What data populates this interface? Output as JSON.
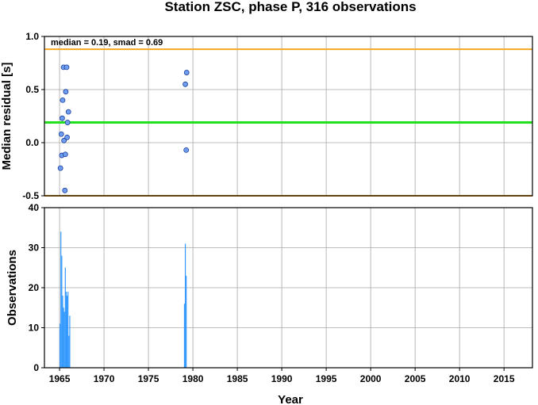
{
  "chart_data": {
    "title": "Station ZSC, phase P, 316 observations",
    "annotation": "median = 0.19, smad = 0.69",
    "xlabel": "Year",
    "xlim": [
      1963.3,
      2018.2
    ],
    "x_ticks": [
      1965,
      1970,
      1975,
      1980,
      1985,
      1990,
      1995,
      2000,
      2005,
      2010,
      2015
    ],
    "colors": {
      "points": "#6f9df0",
      "point_edge": "#1a3f9c",
      "median_line": "#22e01c",
      "bound_lines": "#f5a623",
      "bars": "#3399ff"
    },
    "panels": [
      {
        "type": "scatter",
        "ylabel": "Median residual [s]",
        "ylim": [
          -0.5,
          1.0
        ],
        "y_ticks": [
          -0.5,
          0.0,
          0.5,
          1.0
        ],
        "y_tick_labels": [
          "-0.5",
          "0.0",
          "0.5",
          "1.0"
        ],
        "grid": true,
        "hlines": [
          {
            "name": "median",
            "y": 0.19
          },
          {
            "name": "upper-bound",
            "y": 0.88
          },
          {
            "name": "lower-bound",
            "y": -0.5
          }
        ],
        "points": [
          {
            "x": 1965.1,
            "y": -0.24
          },
          {
            "x": 1965.2,
            "y": 0.08
          },
          {
            "x": 1965.25,
            "y": -0.12
          },
          {
            "x": 1965.3,
            "y": 0.23
          },
          {
            "x": 1965.35,
            "y": 0.4
          },
          {
            "x": 1965.45,
            "y": 0.71
          },
          {
            "x": 1965.5,
            "y": 0.02
          },
          {
            "x": 1965.6,
            "y": -0.45
          },
          {
            "x": 1965.65,
            "y": -0.11
          },
          {
            "x": 1965.7,
            "y": 0.48
          },
          {
            "x": 1965.8,
            "y": 0.71
          },
          {
            "x": 1965.85,
            "y": 0.05
          },
          {
            "x": 1965.9,
            "y": 0.19
          },
          {
            "x": 1966.0,
            "y": 0.29
          },
          {
            "x": 1979.15,
            "y": 0.55
          },
          {
            "x": 1979.25,
            "y": -0.07
          },
          {
            "x": 1979.3,
            "y": 0.66
          }
        ]
      },
      {
        "type": "bar",
        "ylabel": "Observations",
        "ylim": [
          0,
          40
        ],
        "y_ticks": [
          0,
          10,
          20,
          30,
          40
        ],
        "y_tick_labels": [
          "0",
          "10",
          "20",
          "30",
          "40"
        ],
        "grid": true,
        "bars": [
          {
            "x": 1965.05,
            "y": 11
          },
          {
            "x": 1965.15,
            "y": 34
          },
          {
            "x": 1965.25,
            "y": 28
          },
          {
            "x": 1965.35,
            "y": 18
          },
          {
            "x": 1965.45,
            "y": 15
          },
          {
            "x": 1965.55,
            "y": 14
          },
          {
            "x": 1965.65,
            "y": 25
          },
          {
            "x": 1965.75,
            "y": 19
          },
          {
            "x": 1965.85,
            "y": 18
          },
          {
            "x": 1965.95,
            "y": 19
          },
          {
            "x": 1966.05,
            "y": 8
          },
          {
            "x": 1966.15,
            "y": 13
          },
          {
            "x": 1979.05,
            "y": 16
          },
          {
            "x": 1979.15,
            "y": 31
          },
          {
            "x": 1979.25,
            "y": 23
          }
        ]
      }
    ]
  }
}
